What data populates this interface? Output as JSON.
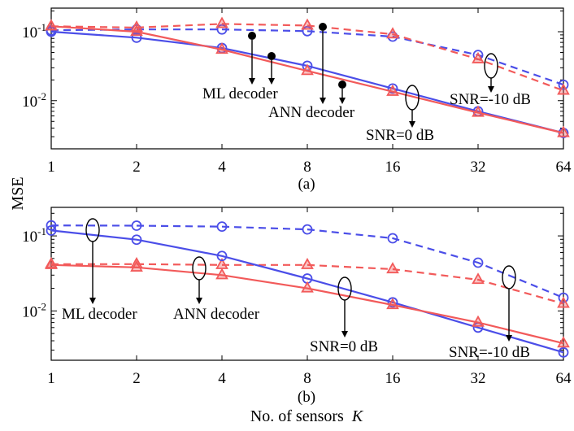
{
  "figure": {
    "ylabel": "MSE",
    "xlabel_text": "No. of sensors",
    "xlabel_var": "K"
  },
  "chart_data": [
    {
      "type": "line",
      "panel_label": "(a)",
      "xscale": "log2",
      "yscale": "log10",
      "x": [
        1,
        2,
        4,
        8,
        16,
        32,
        64
      ],
      "xticklabels": [
        "1",
        "2",
        "4",
        "8",
        "16",
        "32",
        "64"
      ],
      "ylim": [
        0.002,
        0.22
      ],
      "yticks": [
        {
          "value": 0.1,
          "base": "10",
          "exp": "-1"
        },
        {
          "value": 0.01,
          "base": "10",
          "exp": "-2"
        }
      ],
      "grid": false,
      "series": [
        {
          "name": "ML decoder, SNR=-10 dB",
          "color": "#4b4ee8",
          "style": "dashed",
          "marker": "circle",
          "values": [
            0.105,
            0.108,
            0.108,
            0.102,
            0.085,
            0.046,
            0.017
          ]
        },
        {
          "name": "ANN decoder, SNR=-10 dB",
          "color": "#f25a5a",
          "style": "dashed",
          "marker": "triangle",
          "values": [
            0.12,
            0.115,
            0.13,
            0.123,
            0.092,
            0.04,
            0.014
          ]
        },
        {
          "name": "ML decoder, SNR=0 dB",
          "color": "#4b4ee8",
          "style": "solid",
          "marker": "circle",
          "values": [
            0.1,
            0.082,
            0.058,
            0.032,
            0.015,
            0.007,
            0.0034
          ]
        },
        {
          "name": "ANN decoder, SNR=0 dB",
          "color": "#f25a5a",
          "style": "solid",
          "marker": "triangle",
          "values": [
            0.12,
            0.1,
            0.055,
            0.027,
            0.0135,
            0.0067,
            0.0034
          ]
        }
      ],
      "annotations": [
        "ML decoder",
        "ANN decoder",
        "SNR=0 dB",
        "SNR=-10 dB"
      ]
    },
    {
      "type": "line",
      "panel_label": "(b)",
      "xscale": "log2",
      "yscale": "log10",
      "x": [
        1,
        2,
        4,
        8,
        16,
        32,
        64
      ],
      "xticklabels": [
        "1",
        "2",
        "4",
        "8",
        "16",
        "32",
        "64"
      ],
      "ylim": [
        0.0022,
        0.24
      ],
      "yticks": [
        {
          "value": 0.1,
          "base": "10",
          "exp": "-1"
        },
        {
          "value": 0.01,
          "base": "10",
          "exp": "-2"
        }
      ],
      "grid": false,
      "series": [
        {
          "name": "ML decoder, SNR=-10 dB",
          "color": "#4b4ee8",
          "style": "dashed",
          "marker": "circle",
          "values": [
            0.138,
            0.137,
            0.133,
            0.122,
            0.093,
            0.044,
            0.015
          ]
        },
        {
          "name": "ANN decoder, SNR=-10 dB",
          "color": "#f25a5a",
          "style": "dashed",
          "marker": "triangle",
          "values": [
            0.042,
            0.042,
            0.041,
            0.041,
            0.036,
            0.026,
            0.0125
          ]
        },
        {
          "name": "ML decoder, SNR=0 dB",
          "color": "#4b4ee8",
          "style": "solid",
          "marker": "circle",
          "values": [
            0.118,
            0.089,
            0.054,
            0.027,
            0.013,
            0.006,
            0.0028
          ]
        },
        {
          "name": "ANN decoder, SNR=0 dB",
          "color": "#f25a5a",
          "style": "solid",
          "marker": "triangle",
          "values": [
            0.041,
            0.038,
            0.03,
            0.02,
            0.012,
            0.007,
            0.0037
          ]
        }
      ],
      "annotations": [
        "ML decoder",
        "ANN decoder",
        "SNR=0 dB",
        "SNR=-10 dB"
      ]
    }
  ]
}
